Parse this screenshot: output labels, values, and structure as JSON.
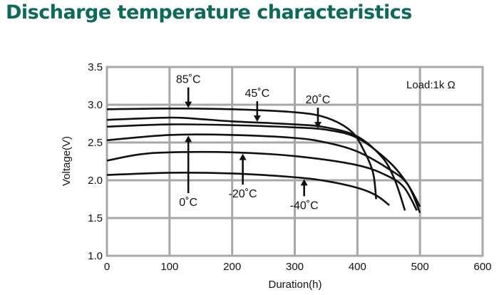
{
  "chart_data": {
    "type": "line",
    "title": "Discharge temperature characteristics",
    "xlabel": "Duration(h)",
    "ylabel": "Voltage(V)",
    "xlim": [
      0,
      600
    ],
    "ylim": [
      1.0,
      3.5
    ],
    "xticks": [
      "0",
      "100",
      "200",
      "300",
      "400",
      "500",
      "600"
    ],
    "yticks": [
      "1.0",
      "1.5",
      "2.0",
      "2.5",
      "3.0",
      "3.5"
    ],
    "grid": true,
    "annotation": "Load:1k Ω",
    "line_color": "#111111",
    "grid_color": "#a8a8a8",
    "title_color": "#0e6a58",
    "series": [
      {
        "name": "85˚C",
        "arrow_x": 130,
        "arrow_dir": "down",
        "points": [
          [
            0,
            2.94
          ],
          [
            100,
            2.95
          ],
          [
            200,
            2.94
          ],
          [
            300,
            2.9
          ],
          [
            350,
            2.83
          ],
          [
            390,
            2.65
          ],
          [
            410,
            2.4
          ],
          [
            425,
            2.1
          ],
          [
            430,
            1.75
          ]
        ]
      },
      {
        "name": "45˚C",
        "arrow_x": 240,
        "arrow_dir": "down",
        "points": [
          [
            0,
            2.8
          ],
          [
            100,
            2.83
          ],
          [
            150,
            2.81
          ],
          [
            200,
            2.78
          ],
          [
            300,
            2.74
          ],
          [
            350,
            2.7
          ],
          [
            400,
            2.58
          ],
          [
            440,
            2.3
          ],
          [
            460,
            2.0
          ],
          [
            476,
            1.6
          ]
        ]
      },
      {
        "name": "20˚C",
        "arrow_x": 337,
        "arrow_dir": "down",
        "points": [
          [
            0,
            2.71
          ],
          [
            100,
            2.74
          ],
          [
            200,
            2.73
          ],
          [
            300,
            2.7
          ],
          [
            350,
            2.67
          ],
          [
            400,
            2.56
          ],
          [
            450,
            2.25
          ],
          [
            480,
            1.95
          ],
          [
            500,
            1.65
          ]
        ]
      },
      {
        "name": "0˚C",
        "arrow_x": 130,
        "arrow_dir": "up",
        "points": [
          [
            0,
            2.53
          ],
          [
            100,
            2.6
          ],
          [
            200,
            2.6
          ],
          [
            300,
            2.56
          ],
          [
            350,
            2.5
          ],
          [
            400,
            2.38
          ],
          [
            450,
            2.15
          ],
          [
            480,
            1.95
          ],
          [
            500,
            1.57
          ]
        ]
      },
      {
        "name": "-20˚C",
        "arrow_x": 217,
        "arrow_dir": "up",
        "points": [
          [
            0,
            2.26
          ],
          [
            50,
            2.34
          ],
          [
            100,
            2.37
          ],
          [
            200,
            2.37
          ],
          [
            300,
            2.32
          ],
          [
            400,
            2.2
          ],
          [
            450,
            2.05
          ],
          [
            475,
            1.9
          ],
          [
            495,
            1.6
          ]
        ]
      },
      {
        "name": "-40˚C",
        "arrow_x": 315,
        "arrow_dir": "up",
        "points": [
          [
            0,
            2.07
          ],
          [
            100,
            2.1
          ],
          [
            200,
            2.09
          ],
          [
            300,
            2.04
          ],
          [
            350,
            1.99
          ],
          [
            400,
            1.9
          ],
          [
            430,
            1.8
          ],
          [
            451,
            1.67
          ]
        ]
      }
    ]
  }
}
